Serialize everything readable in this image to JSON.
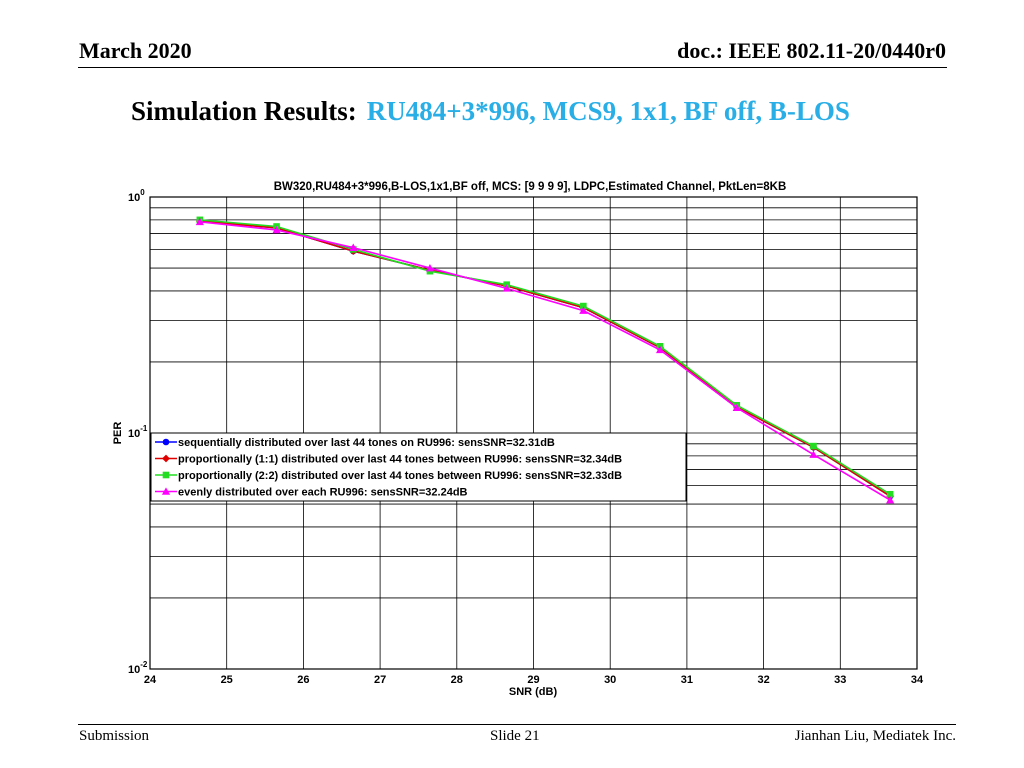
{
  "header": {
    "date": "March 2020",
    "doc": "doc.: IEEE 802.11-20/0440r0"
  },
  "slide": {
    "title_prefix": "Simulation Results:",
    "title_highlight": "RU484+3*996, MCS9, 1x1, BF off, B-LOS"
  },
  "footer": {
    "left": "Submission",
    "center": "Slide 21",
    "right": "Jianhan Liu, Mediatek Inc."
  },
  "colors": {
    "highlight": "#29aee6",
    "series_blue": "#0000ff",
    "series_red": "#e00000",
    "series_green": "#22dd22",
    "series_magenta": "#ff00ff"
  },
  "chart_data": {
    "type": "line",
    "title": "BW320,RU484+3*996,B-LOS,1x1,BF off, MCS: [9  9  9  9], LDPC,Estimated Channel, PktLen=8KB",
    "xlabel": "SNR (dB)",
    "ylabel": "PER",
    "xlim": [
      24,
      34
    ],
    "ylim": [
      0.01,
      1
    ],
    "yscale": "log",
    "xticks": [
      24,
      25,
      26,
      27,
      28,
      29,
      30,
      31,
      32,
      33,
      34
    ],
    "yticks": [
      {
        "value": 1,
        "base": "10",
        "exp": "0"
      },
      {
        "value": 0.1,
        "base": "10",
        "exp": "-1"
      },
      {
        "value": 0.01,
        "base": "10",
        "exp": "-2"
      }
    ],
    "grid": true,
    "legend_position": "lower-left",
    "x": [
      24.65,
      25.65,
      26.65,
      27.65,
      28.65,
      29.65,
      30.65,
      31.65,
      32.65,
      33.65
    ],
    "series": [
      {
        "name": "sequentially distributed over last 44 tones on RU996:   sensSNR=32.31dB",
        "color": "#0000ff",
        "marker": "circle",
        "values": [
          0.79,
          0.74,
          0.59,
          0.49,
          0.42,
          0.34,
          0.23,
          0.129,
          0.087,
          0.054
        ]
      },
      {
        "name": "proportionally (1:1) distributed over last 44 tones between RU996:   sensSNR=32.34dB",
        "color": "#e00000",
        "marker": "diamond",
        "values": [
          0.79,
          0.74,
          0.59,
          0.49,
          0.42,
          0.34,
          0.23,
          0.129,
          0.087,
          0.054
        ]
      },
      {
        "name": "proportionally (2:2) distributed over last 44 tones between RU996:   sensSNR=32.33dB",
        "color": "#22dd22",
        "marker": "square",
        "values": [
          0.8,
          0.75,
          0.6,
          0.485,
          0.425,
          0.345,
          0.233,
          0.131,
          0.088,
          0.055
        ]
      },
      {
        "name": "evenly distributed over each RU996:   sensSNR=32.24dB",
        "color": "#ff00ff",
        "marker": "triangle",
        "values": [
          0.785,
          0.725,
          0.61,
          0.5,
          0.41,
          0.33,
          0.225,
          0.128,
          0.081,
          0.052
        ]
      }
    ]
  }
}
